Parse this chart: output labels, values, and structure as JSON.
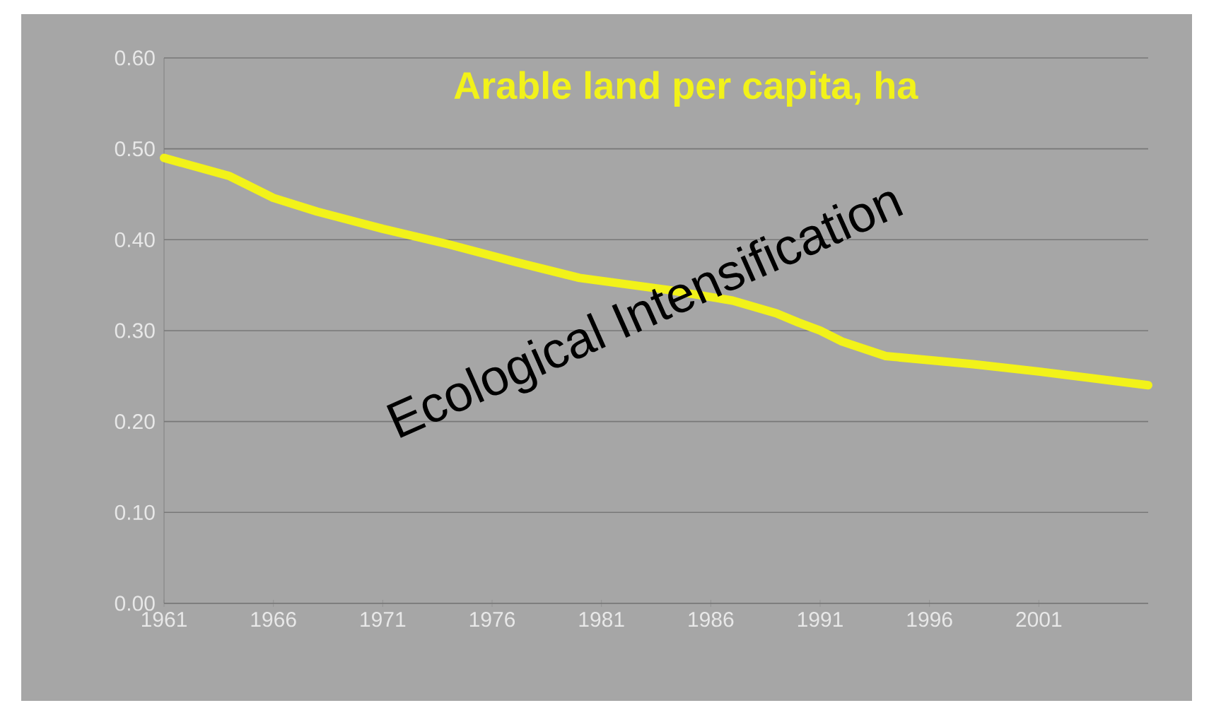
{
  "chart_data": {
    "type": "line",
    "title": "Arable land per capita, ha",
    "x": [
      1961,
      1964,
      1966,
      1968,
      1971,
      1974,
      1977,
      1980,
      1984,
      1987,
      1989,
      1990,
      1991,
      1992,
      1994,
      1998,
      2001,
      2003,
      2006
    ],
    "series": [
      {
        "color": "#f2f21a",
        "values": [
          0.49,
          0.47,
          0.446,
          0.431,
          0.412,
          0.395,
          0.376,
          0.358,
          0.345,
          0.333,
          0.319,
          0.309,
          0.3,
          0.288,
          0.272,
          0.263,
          0.255,
          0.249,
          0.24
        ]
      }
    ],
    "xlim": [
      1961,
      2006
    ],
    "xticks": [
      1961,
      1966,
      1971,
      1976,
      1981,
      1986,
      1991,
      1996,
      2001
    ],
    "ylim": [
      0,
      0.6
    ],
    "yticks": [
      {
        "value": 0,
        "label": "0.00"
      },
      {
        "value": 0.1,
        "label": "0.10"
      },
      {
        "value": 0.2,
        "label": "0.20"
      },
      {
        "value": 0.3,
        "label": "0.30"
      },
      {
        "value": 0.4,
        "label": "0.40"
      },
      {
        "value": 0.5,
        "label": "0.50"
      },
      {
        "value": 0.6,
        "label": "0.60"
      }
    ],
    "grid": "y",
    "marker": "none",
    "line_style": "solid",
    "annotations": [
      "Ecological Intensification"
    ]
  }
}
